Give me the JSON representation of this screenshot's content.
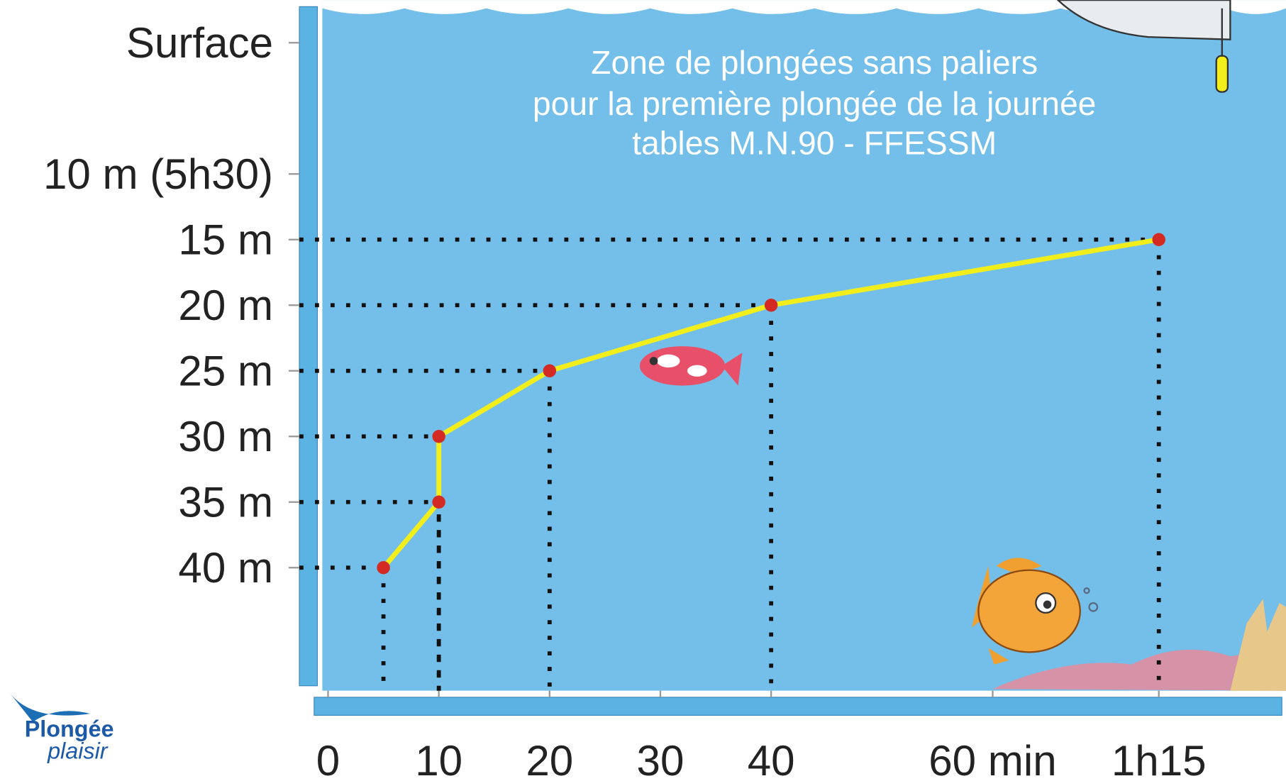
{
  "chart_data": {
    "type": "line",
    "title_lines": [
      "Zone de plongées sans paliers",
      "pour la première plongée de la journée",
      "tables M.N.90 - FFESSM"
    ],
    "x": [
      5,
      10,
      10,
      20,
      40,
      75
    ],
    "values": [
      40,
      35,
      30,
      25,
      20,
      15
    ],
    "color": "#f2ee1c",
    "marker_color": "#d42a24",
    "xlim": [
      0,
      85
    ],
    "xticks": [
      0,
      10,
      20,
      30,
      40,
      {
        "value": 60,
        "label": "60 min"
      },
      {
        "value": 75,
        "label": "1h15"
      }
    ],
    "ylim": [
      0,
      45
    ],
    "yticks": [
      {
        "value": 0,
        "label": "Surface"
      },
      {
        "value": 10,
        "label": "10 m (5h30)"
      },
      {
        "value": 15,
        "label": "15 m"
      },
      {
        "value": 20,
        "label": "20 m"
      },
      {
        "value": 25,
        "label": "25 m"
      },
      {
        "value": 30,
        "label": "30 m"
      },
      {
        "value": 35,
        "label": "35 m"
      },
      {
        "value": 40,
        "label": "40 m"
      }
    ]
  },
  "logo": {
    "line1": "Plongée",
    "line2": "plaisir"
  }
}
